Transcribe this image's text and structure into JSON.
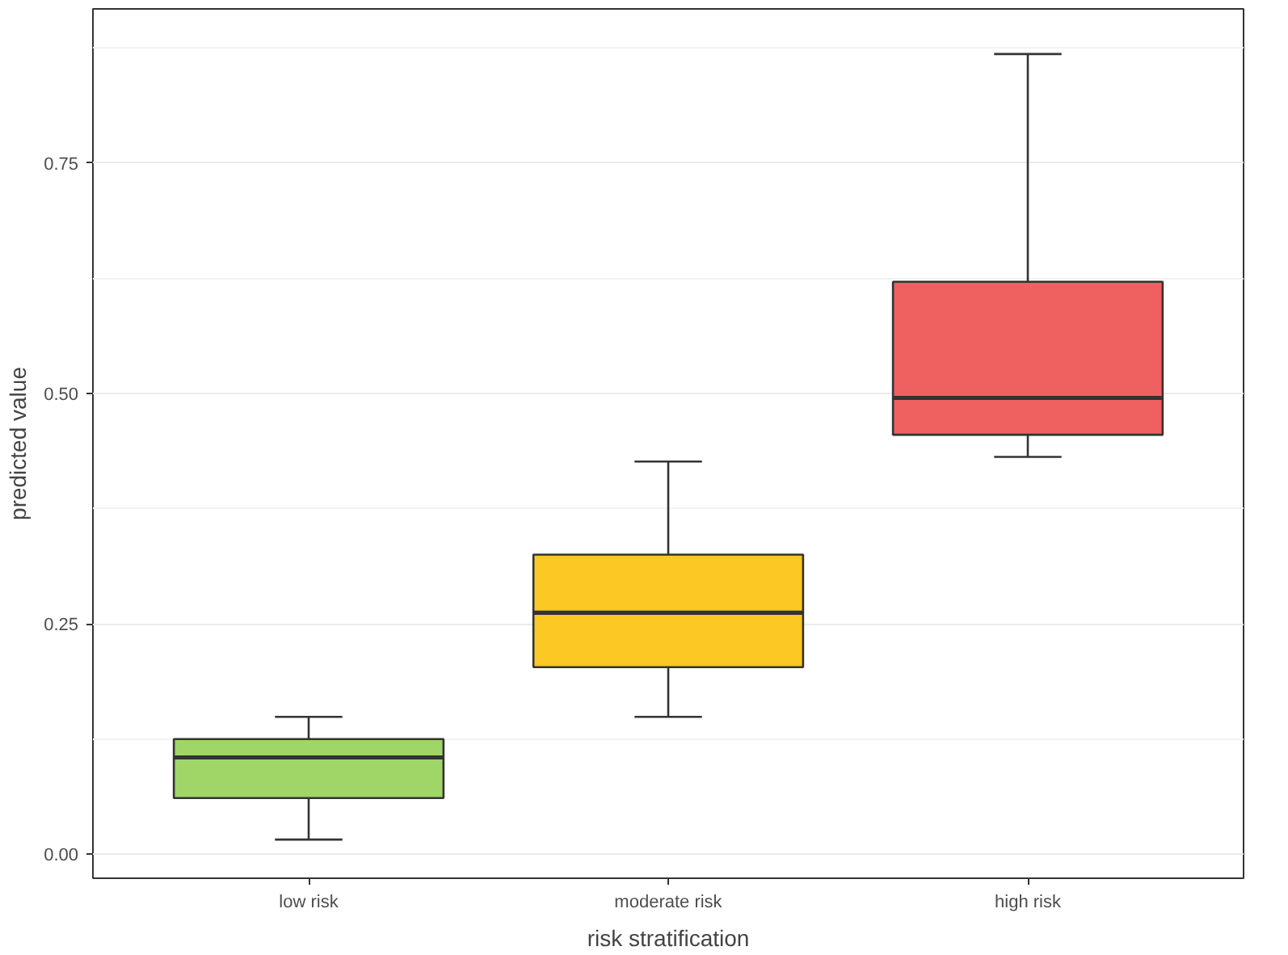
{
  "chart_data": {
    "type": "box",
    "xlabel": "risk stratification",
    "ylabel": "predicted value",
    "categories": [
      "low risk",
      "moderate risk",
      "high risk"
    ],
    "colors": [
      "#a0d568",
      "#fcc824",
      "#ef6060"
    ],
    "boxes": [
      {
        "low": 0.016,
        "q1": 0.061,
        "median": 0.105,
        "q3": 0.125,
        "high": 0.149
      },
      {
        "low": 0.149,
        "q1": 0.203,
        "median": 0.262,
        "q3": 0.325,
        "high": 0.426
      },
      {
        "low": 0.431,
        "q1": 0.455,
        "median": 0.495,
        "q3": 0.621,
        "high": 0.868
      }
    ],
    "ylim": [
      -0.026,
      0.917
    ],
    "yticks": [
      {
        "value": 0,
        "label": "0.00"
      },
      0.25,
      {
        "value": 0.5,
        "label": "0.50"
      },
      0.75
    ],
    "grid": "y"
  }
}
